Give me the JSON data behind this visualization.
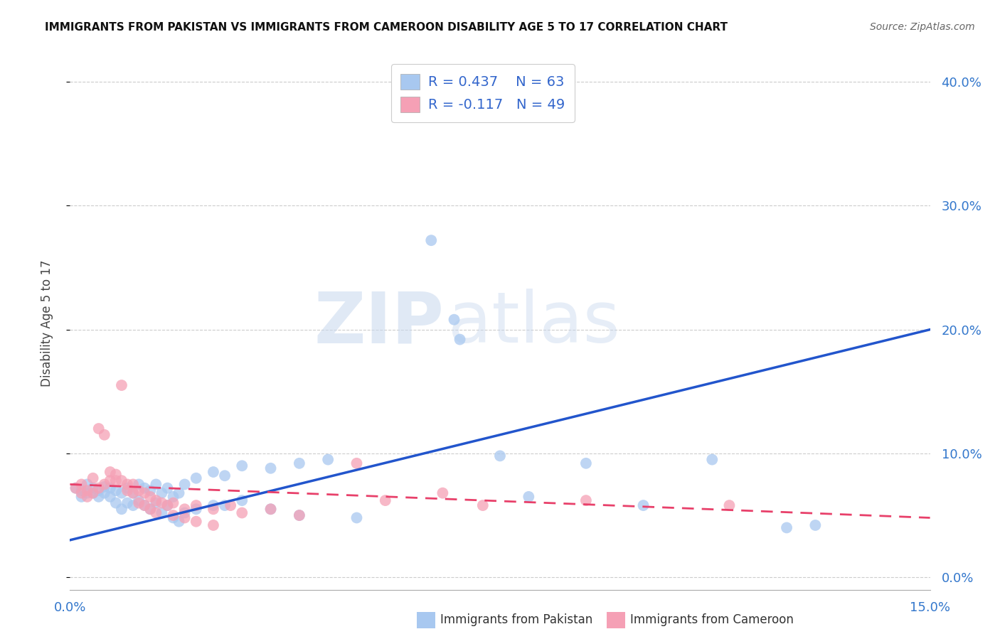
{
  "title": "IMMIGRANTS FROM PAKISTAN VS IMMIGRANTS FROM CAMEROON DISABILITY AGE 5 TO 17 CORRELATION CHART",
  "source": "Source: ZipAtlas.com",
  "ylabel": "Disability Age 5 to 17",
  "xlim": [
    0.0,
    0.15
  ],
  "ylim": [
    -0.01,
    0.42
  ],
  "pakistan_color": "#a8c8f0",
  "cameroon_color": "#f5a0b5",
  "pakistan_line_color": "#2255cc",
  "cameroon_line_color": "#e8406a",
  "background_color": "#ffffff",
  "watermark_zip": "ZIP",
  "watermark_atlas": "atlas",
  "legend_r_pakistan": "R = 0.437",
  "legend_n_pakistan": "N = 63",
  "legend_r_cameroon": "R = -0.117",
  "legend_n_cameroon": "N = 49",
  "pakistan_points": [
    [
      0.001,
      0.072
    ],
    [
      0.002,
      0.065
    ],
    [
      0.002,
      0.07
    ],
    [
      0.003,
      0.068
    ],
    [
      0.003,
      0.075
    ],
    [
      0.004,
      0.068
    ],
    [
      0.004,
      0.072
    ],
    [
      0.005,
      0.07
    ],
    [
      0.005,
      0.065
    ],
    [
      0.006,
      0.073
    ],
    [
      0.006,
      0.068
    ],
    [
      0.007,
      0.072
    ],
    [
      0.007,
      0.065
    ],
    [
      0.008,
      0.07
    ],
    [
      0.008,
      0.06
    ],
    [
      0.009,
      0.068
    ],
    [
      0.009,
      0.055
    ],
    [
      0.01,
      0.072
    ],
    [
      0.01,
      0.06
    ],
    [
      0.011,
      0.068
    ],
    [
      0.011,
      0.058
    ],
    [
      0.012,
      0.075
    ],
    [
      0.012,
      0.062
    ],
    [
      0.013,
      0.072
    ],
    [
      0.013,
      0.058
    ],
    [
      0.014,
      0.07
    ],
    [
      0.014,
      0.055
    ],
    [
      0.015,
      0.075
    ],
    [
      0.015,
      0.06
    ],
    [
      0.016,
      0.068
    ],
    [
      0.016,
      0.052
    ],
    [
      0.017,
      0.072
    ],
    [
      0.017,
      0.058
    ],
    [
      0.018,
      0.065
    ],
    [
      0.018,
      0.048
    ],
    [
      0.019,
      0.068
    ],
    [
      0.019,
      0.045
    ],
    [
      0.02,
      0.075
    ],
    [
      0.02,
      0.052
    ],
    [
      0.022,
      0.08
    ],
    [
      0.022,
      0.055
    ],
    [
      0.025,
      0.085
    ],
    [
      0.025,
      0.058
    ],
    [
      0.027,
      0.082
    ],
    [
      0.027,
      0.058
    ],
    [
      0.03,
      0.09
    ],
    [
      0.03,
      0.062
    ],
    [
      0.035,
      0.088
    ],
    [
      0.035,
      0.055
    ],
    [
      0.04,
      0.092
    ],
    [
      0.04,
      0.05
    ],
    [
      0.045,
      0.095
    ],
    [
      0.05,
      0.048
    ],
    [
      0.063,
      0.272
    ],
    [
      0.067,
      0.208
    ],
    [
      0.068,
      0.192
    ],
    [
      0.075,
      0.098
    ],
    [
      0.08,
      0.065
    ],
    [
      0.09,
      0.092
    ],
    [
      0.1,
      0.058
    ],
    [
      0.112,
      0.095
    ],
    [
      0.125,
      0.04
    ],
    [
      0.13,
      0.042
    ]
  ],
  "cameroon_points": [
    [
      0.001,
      0.072
    ],
    [
      0.002,
      0.068
    ],
    [
      0.002,
      0.075
    ],
    [
      0.003,
      0.07
    ],
    [
      0.003,
      0.065
    ],
    [
      0.004,
      0.08
    ],
    [
      0.004,
      0.068
    ],
    [
      0.005,
      0.072
    ],
    [
      0.005,
      0.12
    ],
    [
      0.006,
      0.075
    ],
    [
      0.006,
      0.115
    ],
    [
      0.007,
      0.078
    ],
    [
      0.007,
      0.085
    ],
    [
      0.008,
      0.078
    ],
    [
      0.008,
      0.083
    ],
    [
      0.009,
      0.078
    ],
    [
      0.009,
      0.155
    ],
    [
      0.01,
      0.075
    ],
    [
      0.01,
      0.07
    ],
    [
      0.011,
      0.075
    ],
    [
      0.011,
      0.068
    ],
    [
      0.012,
      0.07
    ],
    [
      0.012,
      0.06
    ],
    [
      0.013,
      0.068
    ],
    [
      0.013,
      0.058
    ],
    [
      0.014,
      0.065
    ],
    [
      0.014,
      0.055
    ],
    [
      0.015,
      0.062
    ],
    [
      0.015,
      0.052
    ],
    [
      0.016,
      0.06
    ],
    [
      0.017,
      0.058
    ],
    [
      0.018,
      0.06
    ],
    [
      0.018,
      0.05
    ],
    [
      0.02,
      0.055
    ],
    [
      0.02,
      0.048
    ],
    [
      0.022,
      0.058
    ],
    [
      0.022,
      0.045
    ],
    [
      0.025,
      0.055
    ],
    [
      0.025,
      0.042
    ],
    [
      0.028,
      0.058
    ],
    [
      0.03,
      0.052
    ],
    [
      0.035,
      0.055
    ],
    [
      0.04,
      0.05
    ],
    [
      0.05,
      0.092
    ],
    [
      0.055,
      0.062
    ],
    [
      0.065,
      0.068
    ],
    [
      0.072,
      0.058
    ],
    [
      0.09,
      0.062
    ],
    [
      0.115,
      0.058
    ]
  ]
}
